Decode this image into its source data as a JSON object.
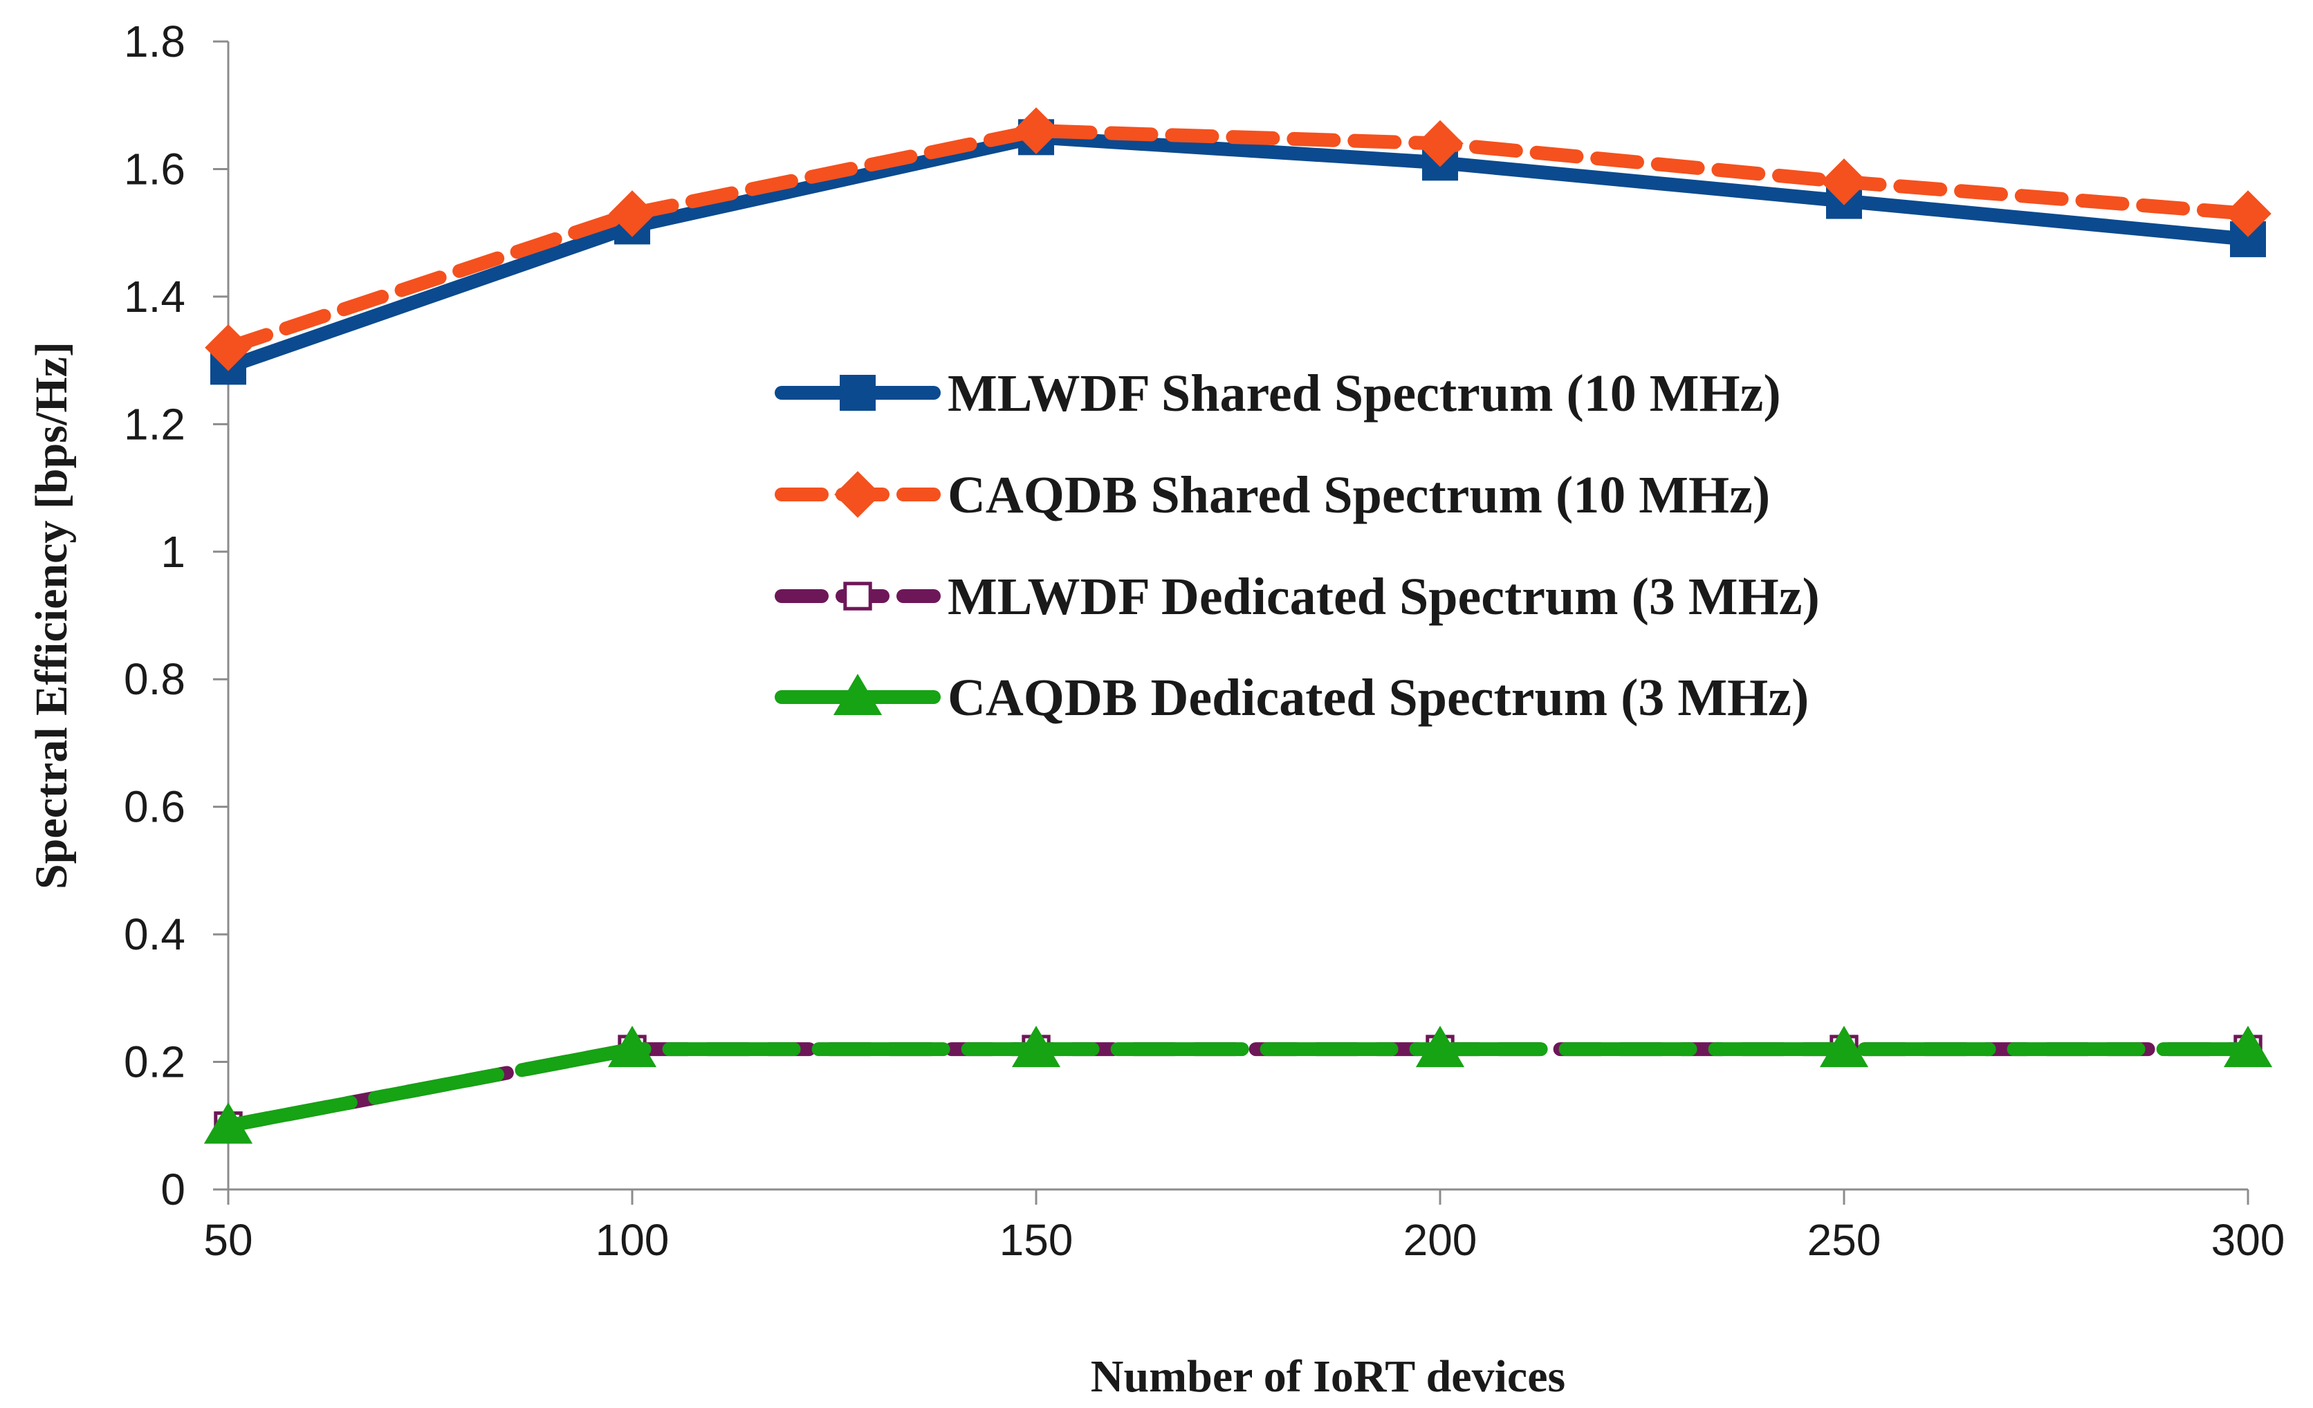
{
  "chart_data": {
    "type": "line",
    "title": "",
    "xlabel": "Number of IoRT devices",
    "ylabel": "Spectral Efficiency [bps/Hz]",
    "x": [
      50,
      100,
      150,
      200,
      250,
      300
    ],
    "xlim": [
      50,
      300
    ],
    "ylim": [
      0,
      1.8
    ],
    "x_ticks": [
      "50",
      "100",
      "150",
      "200",
      "250",
      "300"
    ],
    "y_ticks": [
      "0",
      "0.2",
      "0.4",
      "0.6",
      "0.8",
      "1",
      "1.2",
      "1.4",
      "1.6",
      "1.8"
    ],
    "y_tick_values": [
      0,
      0.2,
      0.4,
      0.6,
      0.8,
      1.0,
      1.2,
      1.4,
      1.6,
      1.8
    ],
    "grid": false,
    "legend_position": "center-right",
    "series": [
      {
        "name": "MLWDF Shared Spectrum (10 MHz)",
        "values": [
          1.29,
          1.51,
          1.65,
          1.61,
          1.55,
          1.49
        ],
        "color": "#0b4a8f",
        "marker": "square",
        "dash": "solid"
      },
      {
        "name": "CAQDB Shared Spectrum (10 MHz)",
        "values": [
          1.32,
          1.53,
          1.66,
          1.64,
          1.58,
          1.53
        ],
        "color": "#f4511e",
        "marker": "diamond",
        "dash": "dashed"
      },
      {
        "name": "MLWDF Dedicated Spectrum (3 MHz)",
        "values": [
          0.1,
          0.22,
          0.22,
          0.22,
          0.22,
          0.22
        ],
        "color": "#6d1758",
        "marker": "square-open",
        "dash": "dashed"
      },
      {
        "name": "CAQDB Dedicated Spectrum (3 MHz)",
        "values": [
          0.1,
          0.22,
          0.22,
          0.22,
          0.22,
          0.22
        ],
        "color": "#16a314",
        "marker": "triangle",
        "dash": "longdash"
      }
    ]
  }
}
